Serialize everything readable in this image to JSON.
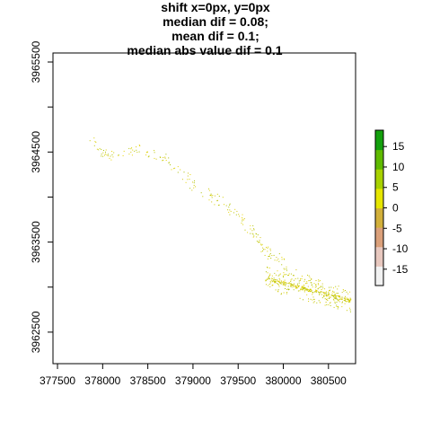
{
  "chart_data": {
    "type": "heatmap",
    "title_lines": [
      "shift x=0px, y=0px",
      "median dif = 0.08;",
      "mean dif = 0.1;",
      "median abs value dif = 0.1"
    ],
    "xlabel": "",
    "ylabel": "",
    "xlim": [
      377450,
      380800
    ],
    "ylim": [
      3962150,
      3965600
    ],
    "x_ticks": [
      377500,
      378000,
      378500,
      379000,
      379500,
      380000,
      380500
    ],
    "x_tick_labels": [
      "377500",
      "378000",
      "378500",
      "379000",
      "379500",
      "380000",
      "380500"
    ],
    "y_ticks": [
      3962500,
      3963000,
      3963500,
      3964000,
      3964500,
      3965000,
      3965500
    ],
    "y_label_values": [
      3962500,
      3963500,
      3964500,
      3965500
    ],
    "y_tick_labels": [
      "3962500",
      "3963500",
      "3964500",
      "3965500"
    ],
    "legend": {
      "placement": "right",
      "min": -19,
      "max": 19,
      "ticks": [
        15,
        10,
        5,
        0,
        -5,
        -10,
        -15
      ],
      "tick_labels": [
        "15",
        "10",
        "5",
        "0",
        "-5",
        "-10",
        "-15"
      ],
      "colors": [
        "#f2f2f2",
        "#e8c8bf",
        "#dba07a",
        "#d2b03a",
        "#e6e600",
        "#a8d200",
        "#5fba00",
        "#13a00d"
      ]
    },
    "raster_path": [
      [
        377850,
        3964680
      ],
      [
        378050,
        3964450
      ],
      [
        378400,
        3964550
      ],
      [
        378700,
        3964420
      ],
      [
        379000,
        3964150
      ],
      [
        379300,
        3963950
      ],
      [
        379550,
        3963750
      ],
      [
        379700,
        3963520
      ],
      [
        379850,
        3963380
      ],
      [
        380050,
        3963200
      ],
      [
        380350,
        3963050
      ],
      [
        380700,
        3962850
      ]
    ],
    "raster_cluster": {
      "x_range": [
        379800,
        380750
      ],
      "y_range": [
        3962650,
        3963350
      ]
    }
  }
}
